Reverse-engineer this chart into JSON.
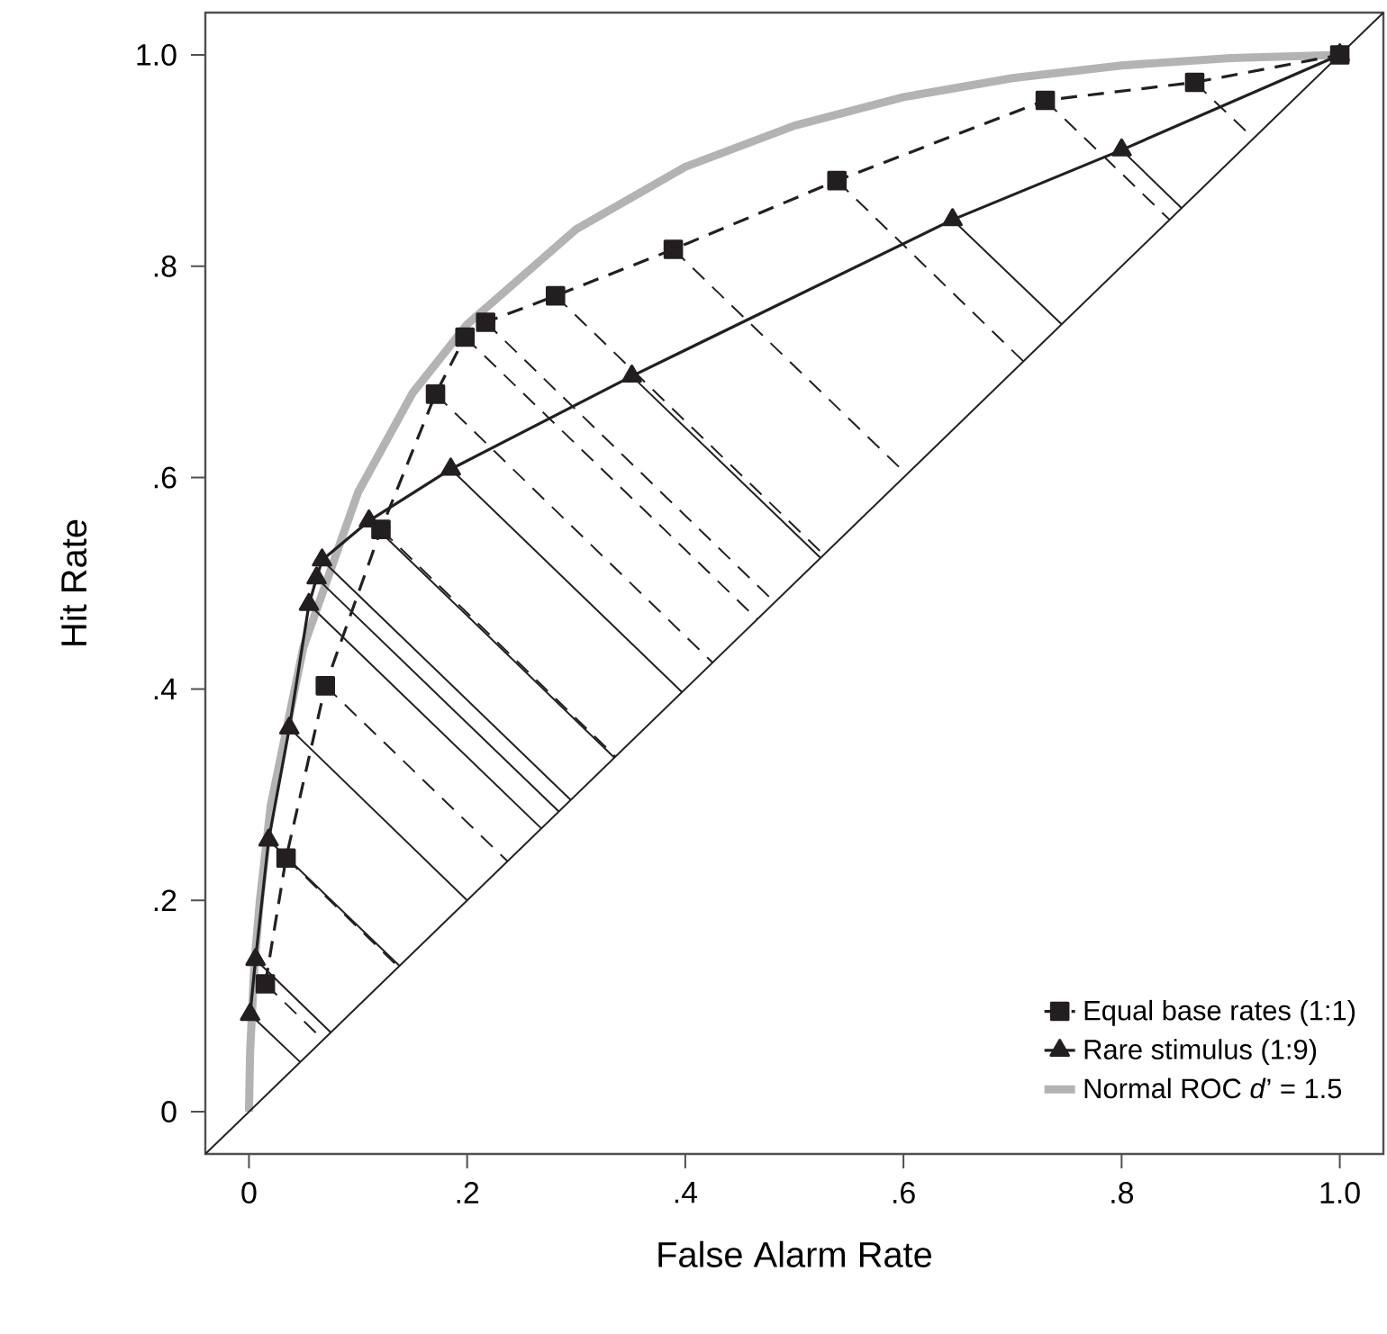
{
  "chart_data": {
    "type": "line",
    "xlabel": "False Alarm Rate",
    "ylabel": "Hit Rate",
    "xlim": [
      -0.04,
      1.04
    ],
    "ylim": [
      -0.04,
      1.04
    ],
    "xticks": [
      0,
      {
        "value": 0.2,
        "label": ".2"
      },
      {
        "value": 0.4,
        "label": ".4"
      },
      {
        "value": 0.6,
        "label": ".6"
      },
      {
        "value": 0.8,
        "label": ".8"
      },
      {
        "value": 1.0,
        "label": "1.0"
      }
    ],
    "yticks": [
      0,
      {
        "value": 0.2,
        "label": ".2"
      },
      {
        "value": 0.4,
        "label": ".4"
      },
      {
        "value": 0.6,
        "label": ".6"
      },
      {
        "value": 0.8,
        "label": ".8"
      },
      {
        "value": 1.0,
        "label": "1.0"
      }
    ],
    "legend": "bottom right",
    "series": [
      {
        "name": "Normal ROC *d*’ = 1.5",
        "color": "#b3b3b3",
        "line_style": "solid",
        "marker": "none",
        "x": [
          0,
          0.001,
          0.005,
          0.01,
          0.02,
          0.05,
          0.1,
          0.15,
          0.2,
          0.3,
          0.4,
          0.5,
          0.6,
          0.7,
          0.8,
          0.9,
          1.0
        ],
        "values": [
          0,
          0.056,
          0.14,
          0.2,
          0.29,
          0.44,
          0.586,
          0.68,
          0.745,
          0.835,
          0.894,
          0.933,
          0.96,
          0.978,
          0.99,
          0.997,
          1.0
        ]
      },
      {
        "name": "Rare stimulus (1:9)",
        "color": "#231f20",
        "line_style": "solid",
        "marker": "triangle",
        "x": [
          0.001,
          0.006,
          0.018,
          0.037,
          0.055,
          0.062,
          0.067,
          0.11,
          0.185,
          0.351,
          0.645,
          0.8,
          1.0
        ],
        "values": [
          0.092,
          0.144,
          0.257,
          0.363,
          0.48,
          0.505,
          0.522,
          0.559,
          0.608,
          0.696,
          0.844,
          0.91,
          1.0
        ]
      },
      {
        "name": "Equal base rates (1:1)",
        "color": "#231f20",
        "line_style": "dashed",
        "marker": "square",
        "x": [
          0.015,
          0.034,
          0.07,
          0.121,
          0.171,
          0.198,
          0.217,
          0.281,
          0.389,
          0.539,
          0.73,
          0.867,
          1.0
        ],
        "values": [
          0.121,
          0.24,
          0.403,
          0.551,
          0.679,
          0.733,
          0.747,
          0.772,
          0.816,
          0.881,
          0.957,
          0.974,
          1.0
        ]
      },
      {
        "color": "#231f20",
        "line_style": "solid",
        "x": [
          -0.04,
          1.04
        ],
        "values": [
          -0.04,
          1.04
        ]
      },
      {
        "color": "#231f20",
        "line_style": "dashed",
        "x": [
          0.015,
          0.068
        ],
        "values": [
          0.121,
          0.068
        ]
      },
      {
        "color": "#231f20",
        "line_style": "dashed",
        "x": [
          0.034,
          0.137
        ],
        "values": [
          0.24,
          0.137
        ]
      },
      {
        "color": "#231f20",
        "line_style": "dashed",
        "x": [
          0.07,
          0.237
        ],
        "values": [
          0.403,
          0.237
        ]
      },
      {
        "color": "#231f20",
        "line_style": "dashed",
        "x": [
          0.121,
          0.336
        ],
        "values": [
          0.551,
          0.336
        ]
      },
      {
        "color": "#231f20",
        "line_style": "dashed",
        "x": [
          0.171,
          0.425
        ],
        "values": [
          0.679,
          0.425
        ]
      },
      {
        "color": "#231f20",
        "line_style": "dashed",
        "x": [
          0.198,
          0.466
        ],
        "values": [
          0.733,
          0.466
        ]
      },
      {
        "color": "#231f20",
        "line_style": "dashed",
        "x": [
          0.217,
          0.482
        ],
        "values": [
          0.747,
          0.482
        ]
      },
      {
        "color": "#231f20",
        "line_style": "dashed",
        "x": [
          0.281,
          0.527
        ],
        "values": [
          0.772,
          0.527
        ]
      },
      {
        "color": "#231f20",
        "line_style": "dashed",
        "x": [
          0.389,
          0.603
        ],
        "values": [
          0.816,
          0.603
        ]
      },
      {
        "color": "#231f20",
        "line_style": "dashed",
        "x": [
          0.539,
          0.71
        ],
        "values": [
          0.881,
          0.71
        ]
      },
      {
        "color": "#231f20",
        "line_style": "dashed",
        "x": [
          0.73,
          0.844
        ],
        "values": [
          0.957,
          0.844
        ]
      },
      {
        "color": "#231f20",
        "line_style": "dashed",
        "x": [
          0.867,
          0.921
        ],
        "values": [
          0.974,
          0.921
        ]
      },
      {
        "color": "#231f20",
        "line_style": "solid",
        "x": [
          0.001,
          0.047
        ],
        "values": [
          0.092,
          0.047
        ]
      },
      {
        "color": "#231f20",
        "line_style": "solid",
        "x": [
          0.006,
          0.075
        ],
        "values": [
          0.144,
          0.075
        ]
      },
      {
        "color": "#231f20",
        "line_style": "solid",
        "x": [
          0.018,
          0.138
        ],
        "values": [
          0.257,
          0.138
        ]
      },
      {
        "color": "#231f20",
        "line_style": "solid",
        "x": [
          0.037,
          0.2
        ],
        "values": [
          0.363,
          0.2
        ]
      },
      {
        "color": "#231f20",
        "line_style": "solid",
        "x": [
          0.055,
          0.268
        ],
        "values": [
          0.48,
          0.268
        ]
      },
      {
        "color": "#231f20",
        "line_style": "solid",
        "x": [
          0.062,
          0.284
        ],
        "values": [
          0.505,
          0.284
        ]
      },
      {
        "color": "#231f20",
        "line_style": "solid",
        "x": [
          0.067,
          0.295
        ],
        "values": [
          0.522,
          0.295
        ]
      },
      {
        "color": "#231f20",
        "line_style": "solid",
        "x": [
          0.11,
          0.335
        ],
        "values": [
          0.559,
          0.335
        ]
      },
      {
        "color": "#231f20",
        "line_style": "solid",
        "x": [
          0.185,
          0.397
        ],
        "values": [
          0.608,
          0.397
        ]
      },
      {
        "color": "#231f20",
        "line_style": "solid",
        "x": [
          0.351,
          0.524
        ],
        "values": [
          0.696,
          0.524
        ]
      },
      {
        "color": "#231f20",
        "line_style": "solid",
        "x": [
          0.645,
          0.745
        ],
        "values": [
          0.844,
          0.745
        ]
      },
      {
        "color": "#231f20",
        "line_style": "solid",
        "x": [
          0.8,
          0.855
        ],
        "values": [
          0.91,
          0.855
        ]
      }
    ]
  }
}
